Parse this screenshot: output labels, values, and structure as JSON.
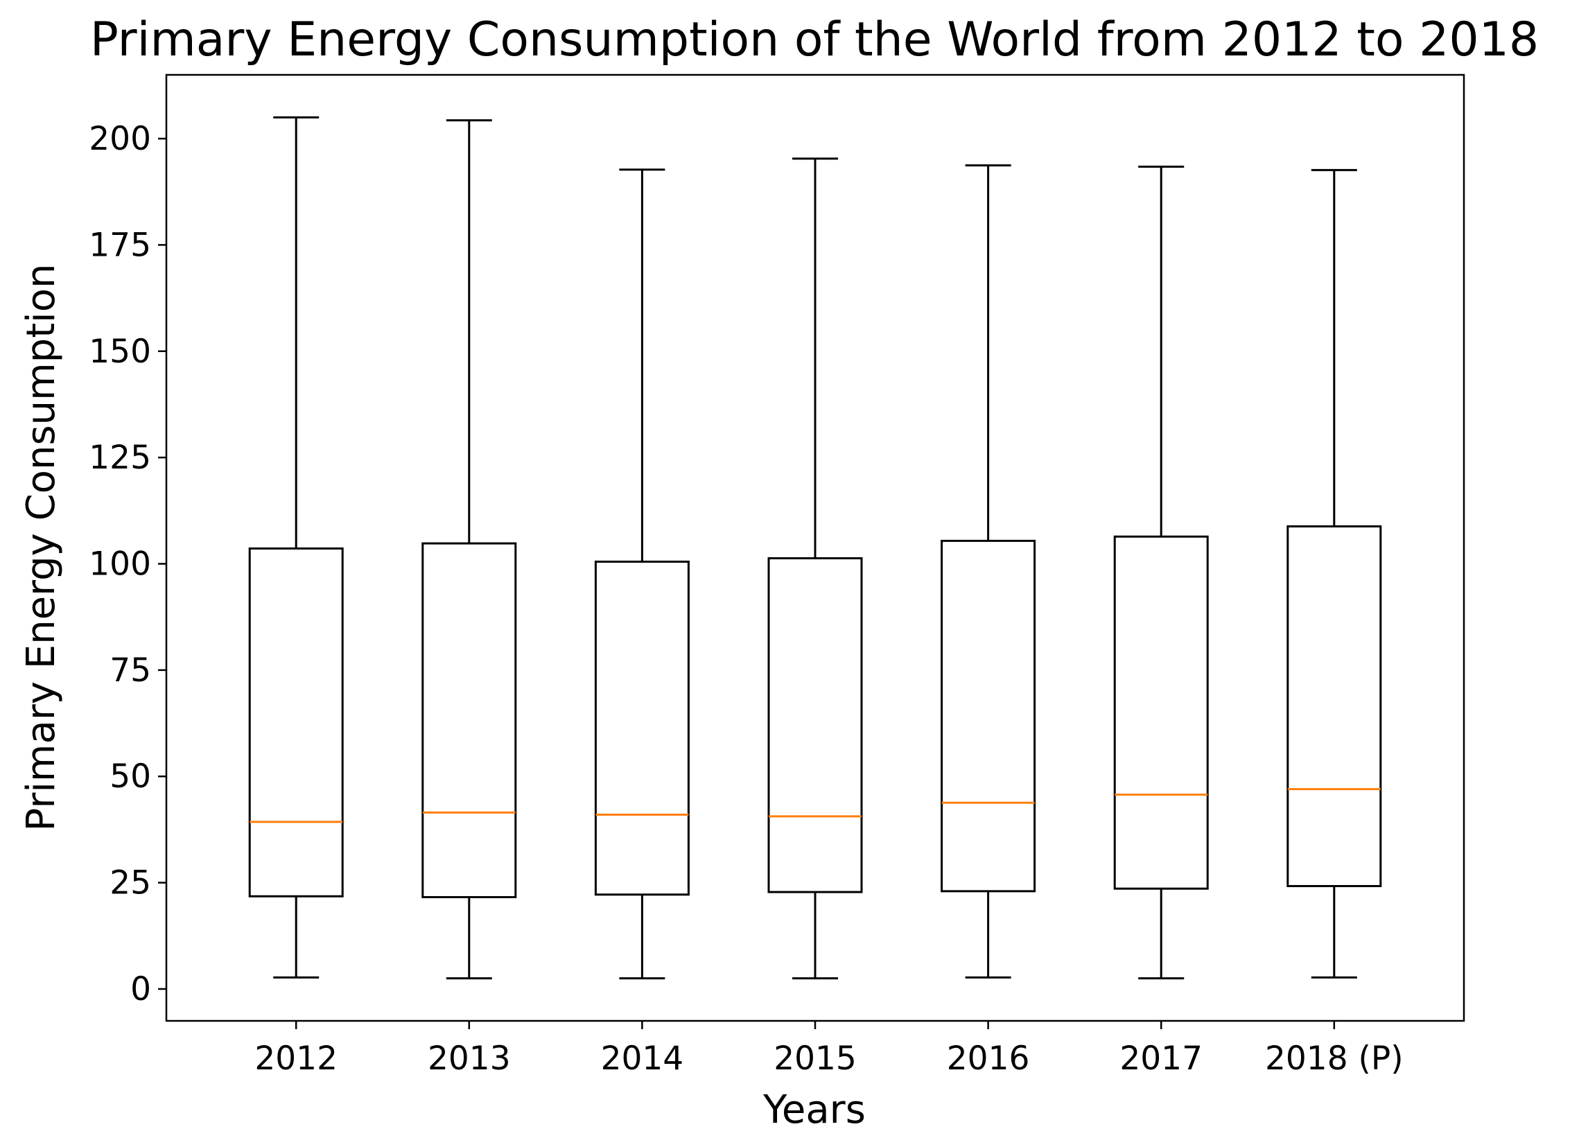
{
  "chart_data": {
    "type": "box",
    "title": "Primary Energy Consumption of the World from 2012 to 2018",
    "xlabel": "Years",
    "ylabel": "Primary Energy Consumption",
    "categories": [
      "2012",
      "2013",
      "2014",
      "2015",
      "2016",
      "2017",
      "2018 (P)"
    ],
    "ylim": [
      -7.5,
      215
    ],
    "yticks": [
      0,
      25,
      50,
      75,
      100,
      125,
      150,
      175,
      200
    ],
    "boxes": [
      {
        "category": "2012",
        "whisker_low": 2.7,
        "q1": 21.8,
        "median": 39.3,
        "q3": 103.6,
        "whisker_high": 205.0
      },
      {
        "category": "2013",
        "whisker_low": 2.5,
        "q1": 21.6,
        "median": 41.5,
        "q3": 104.8,
        "whisker_high": 204.3
      },
      {
        "category": "2014",
        "whisker_low": 2.5,
        "q1": 22.2,
        "median": 41.0,
        "q3": 100.5,
        "whisker_high": 192.7
      },
      {
        "category": "2015",
        "whisker_low": 2.5,
        "q1": 22.8,
        "median": 40.6,
        "q3": 101.3,
        "whisker_high": 195.3
      },
      {
        "category": "2016",
        "whisker_low": 2.7,
        "q1": 23.0,
        "median": 43.8,
        "q3": 105.4,
        "whisker_high": 193.7
      },
      {
        "category": "2017",
        "whisker_low": 2.5,
        "q1": 23.6,
        "median": 45.7,
        "q3": 106.4,
        "whisker_high": 193.4
      },
      {
        "category": "2018 (P)",
        "whisker_low": 2.7,
        "q1": 24.2,
        "median": 47.0,
        "q3": 108.8,
        "whisker_high": 192.6
      }
    ],
    "grid": false,
    "colors": {
      "box": "#000000",
      "median": "#ff7f0e"
    }
  }
}
